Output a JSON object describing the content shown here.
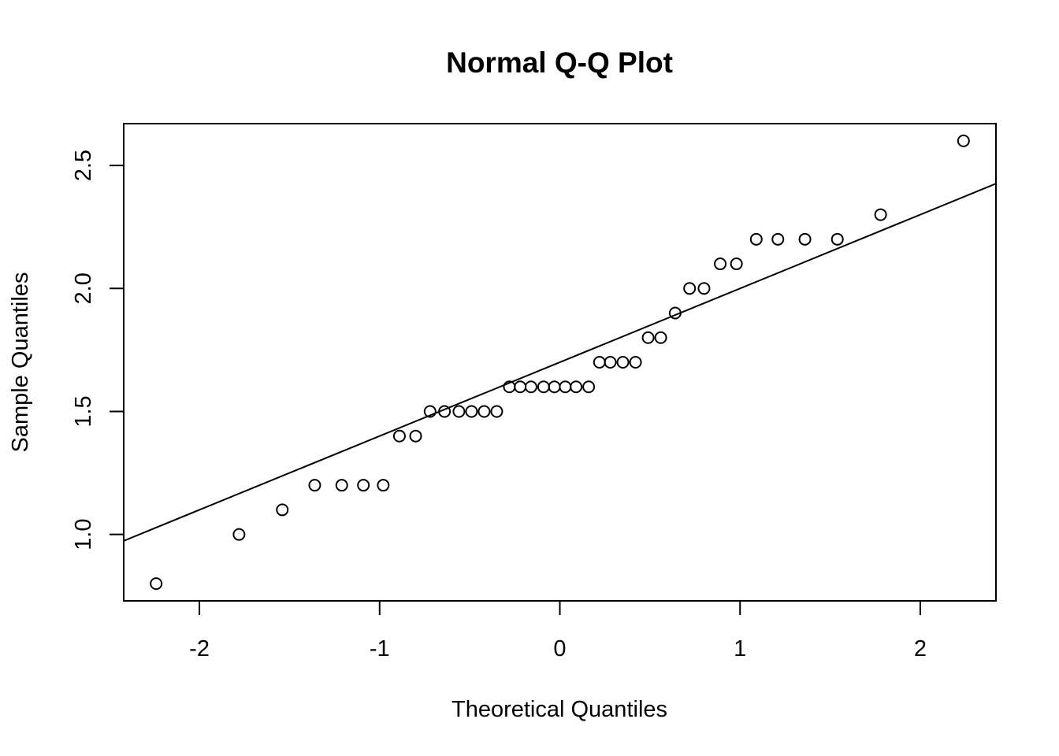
{
  "chart_data": {
    "type": "scatter",
    "title": "Normal Q-Q Plot",
    "xlabel": "Theoretical Quantiles",
    "ylabel": "Sample Quantiles",
    "xlim": [
      -2.42,
      2.42
    ],
    "ylim": [
      0.73,
      2.67
    ],
    "x_ticks": [
      -2,
      -1,
      0,
      1,
      2
    ],
    "x_tick_labels": [
      "-2",
      "-1",
      "0",
      "1",
      "2"
    ],
    "y_ticks": [
      1.0,
      1.5,
      2.0,
      2.5
    ],
    "y_tick_labels": [
      "1.0",
      "1.5",
      "2.0",
      "2.5"
    ],
    "grid": false,
    "colors": {
      "foreground": "#000000",
      "background": "#ffffff"
    },
    "series": [
      {
        "x": [
          -2.24,
          -1.78,
          -1.54,
          -1.36,
          -1.21,
          -1.09,
          -0.98,
          -0.89,
          -0.8,
          -0.72,
          -0.64,
          -0.56,
          -0.49,
          -0.42,
          -0.35,
          -0.28,
          -0.22,
          -0.16,
          -0.09,
          -0.03,
          0.03,
          0.09,
          0.16,
          0.22,
          0.28,
          0.35,
          0.42,
          0.49,
          0.56,
          0.64,
          0.72,
          0.8,
          0.89,
          0.98,
          1.09,
          1.21,
          1.36,
          1.54,
          1.78,
          2.24
        ],
        "y": [
          0.8,
          1.0,
          1.1,
          1.2,
          1.2,
          1.2,
          1.2,
          1.4,
          1.4,
          1.5,
          1.5,
          1.5,
          1.5,
          1.5,
          1.5,
          1.6,
          1.6,
          1.6,
          1.6,
          1.6,
          1.6,
          1.6,
          1.6,
          1.7,
          1.7,
          1.7,
          1.7,
          1.8,
          1.8,
          1.9,
          2.0,
          2.0,
          2.1,
          2.1,
          2.2,
          2.2,
          2.2,
          2.2,
          2.3,
          2.6
        ]
      }
    ],
    "reference_line": {
      "intercept": 1.7,
      "slope": 0.3
    }
  }
}
